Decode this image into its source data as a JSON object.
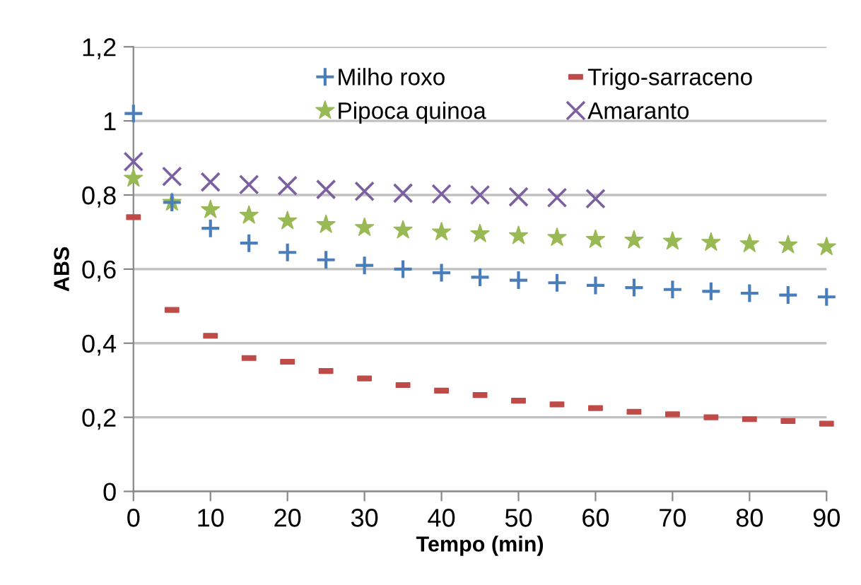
{
  "chart_data": {
    "type": "scatter",
    "xlabel": "Tempo (min)",
    "ylabel": "ABS",
    "x": [
      0,
      5,
      10,
      15,
      20,
      25,
      30,
      35,
      40,
      45,
      50,
      55,
      60,
      65,
      70,
      75,
      80,
      85,
      90
    ],
    "series": [
      {
        "name": "Milho roxo",
        "color": "#4a7ebb",
        "marker": "cross",
        "values": [
          1.02,
          0.78,
          0.71,
          0.67,
          0.645,
          0.625,
          0.61,
          0.6,
          0.59,
          0.578,
          0.57,
          0.563,
          0.556,
          0.55,
          0.545,
          0.54,
          0.535,
          0.53,
          0.525
        ]
      },
      {
        "name": "Trigo-sarraceno",
        "color": "#be4b48",
        "marker": "square",
        "values": [
          0.74,
          0.49,
          0.42,
          0.36,
          0.35,
          0.325,
          0.305,
          0.287,
          0.272,
          0.26,
          0.245,
          0.235,
          0.225,
          0.215,
          0.208,
          0.2,
          0.195,
          0.19,
          0.183
        ]
      },
      {
        "name": "Pipoca quinoa",
        "color": "#98b954",
        "marker": "star",
        "values": [
          0.845,
          0.78,
          0.76,
          0.745,
          0.73,
          0.72,
          0.712,
          0.705,
          0.7,
          0.695,
          0.69,
          0.685,
          0.68,
          0.678,
          0.675,
          0.672,
          0.668,
          0.665,
          0.66
        ]
      },
      {
        "name": "Amaranto",
        "color": "#7d60a0",
        "marker": "cross",
        "values": [
          0.89,
          0.85,
          0.835,
          0.828,
          0.825,
          0.815,
          0.81,
          0.805,
          0.803,
          0.8,
          0.795,
          0.793,
          0.79,
          null,
          null,
          null,
          null,
          null,
          null
        ]
      }
    ],
    "xlim": [
      0,
      90
    ],
    "xticks": [
      0,
      10,
      20,
      30,
      40,
      50,
      60,
      70,
      80,
      90
    ],
    "ylim": [
      0,
      1.2
    ],
    "yticks": [
      0,
      {
        "value": 0.2,
        "label": "0,2"
      },
      {
        "value": 0.4,
        "label": "0,4"
      },
      {
        "value": 0.6,
        "label": "0,6"
      },
      {
        "value": 0.8,
        "label": "0,8"
      },
      1,
      {
        "value": 1.2,
        "label": "1,2"
      }
    ],
    "grid": "y",
    "legend": "top"
  }
}
